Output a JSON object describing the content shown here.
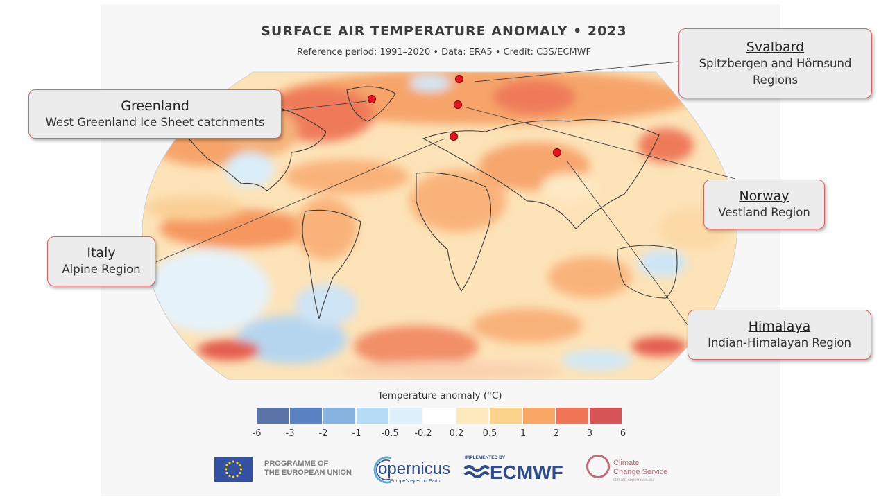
{
  "title": "SURFACE AIR TEMPERATURE ANOMALY • 2023",
  "subtitle": "Reference period: 1991–2020 • Data: ERA5 • Credit: C3S/ECMWF",
  "colors": {
    "marker": "#e8141c",
    "callout_border": "#e06060",
    "legend": [
      "#5b74a8",
      "#5a82c2",
      "#86b3e0",
      "#b6dcf5",
      "#def0fb",
      "#ffffff",
      "#fde9be",
      "#fcd38a",
      "#f9a865",
      "#ef7556",
      "#d65456"
    ]
  },
  "callouts": {
    "svalbard": {
      "name": "Svalbard",
      "region_line1": "Spitzbergen and Hörnsund",
      "region_line2": "Regions"
    },
    "greenland": {
      "name": "Greenland",
      "region": "West Greenland Ice Sheet catchments"
    },
    "norway": {
      "name": "Norway",
      "region": "Vestland Region"
    },
    "italy": {
      "name": "Italy",
      "region": "Alpine Region"
    },
    "himalaya": {
      "name": "Himalaya",
      "region": "Indian-Himalayan Region"
    }
  },
  "legend": {
    "title": "Temperature anomaly (°C)",
    "ticks": [
      "-6",
      "-3",
      "-2",
      "-1",
      "-0.5",
      "-0.2",
      "0.2",
      "0.5",
      "1",
      "2",
      "3",
      "6"
    ]
  },
  "footer": {
    "programme_line1": "PROGRAMME OF",
    "programme_line2": "THE EUROPEAN UNION",
    "copernicus": "opernicus",
    "copernicus_tagline": "Europe's eyes on Earth",
    "implemented_by": "IMPLEMENTED BY",
    "ecmwf": "ECMWF",
    "c3s_line1": "Climate",
    "c3s_line2": "Change Service",
    "c3s_url": "climate.copernicus.eu"
  }
}
